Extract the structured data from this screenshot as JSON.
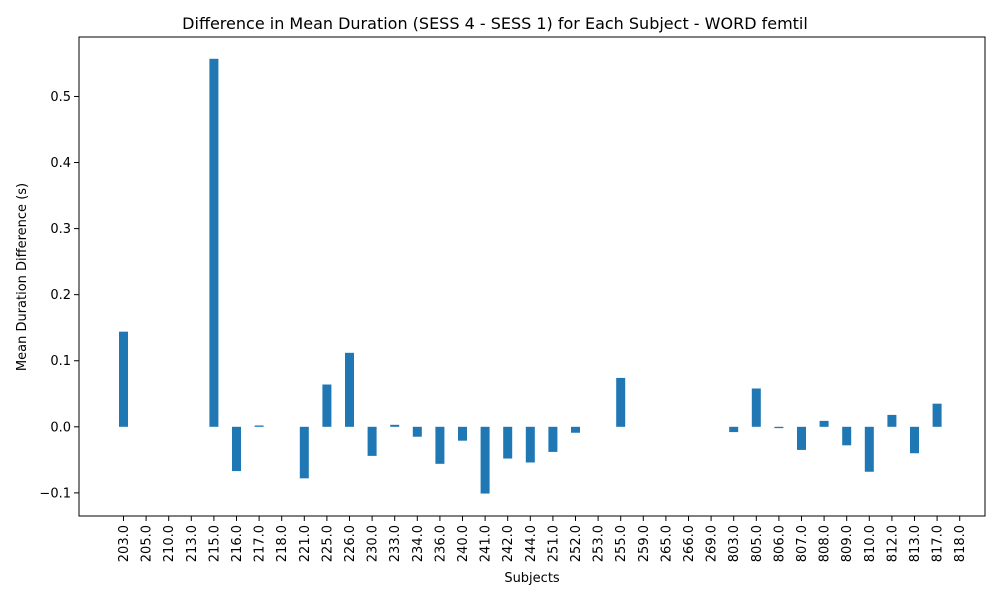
{
  "chart_data": {
    "type": "bar",
    "title": "Difference in Mean Duration (SESS 4 - SESS 1) for Each Subject - WORD femtil",
    "xlabel": "Subjects",
    "ylabel": "Mean Duration Difference (s)",
    "ylim": [
      -0.135,
      0.59
    ],
    "yticks": [
      -0.1,
      0.0,
      0.1,
      0.2,
      0.3,
      0.4,
      0.5
    ],
    "ytick_labels": [
      "−0.1",
      "0.0",
      "0.1",
      "0.2",
      "0.3",
      "0.4",
      "0.5"
    ],
    "grid": false,
    "bar_color": "#1f77b4",
    "categories": [
      "203.0",
      "205.0",
      "210.0",
      "213.0",
      "215.0",
      "216.0",
      "217.0",
      "218.0",
      "221.0",
      "225.0",
      "226.0",
      "230.0",
      "233.0",
      "234.0",
      "236.0",
      "240.0",
      "241.0",
      "242.0",
      "244.0",
      "251.0",
      "252.0",
      "253.0",
      "255.0",
      "259.0",
      "265.0",
      "266.0",
      "269.0",
      "803.0",
      "805.0",
      "806.0",
      "807.0",
      "808.0",
      "809.0",
      "810.0",
      "812.0",
      "813.0",
      "817.0",
      "818.0"
    ],
    "values": [
      0.144,
      0.0,
      0.0,
      0.0,
      0.557,
      -0.067,
      0.002,
      0.0,
      -0.078,
      0.064,
      0.112,
      -0.044,
      0.003,
      -0.015,
      -0.056,
      -0.021,
      -0.101,
      -0.048,
      -0.054,
      -0.038,
      -0.009,
      0.0,
      0.074,
      0.0,
      0.0,
      0.0,
      0.0,
      -0.008,
      0.058,
      -0.002,
      -0.035,
      0.009,
      -0.028,
      -0.068,
      0.018,
      -0.04,
      0.035,
      0.0
    ]
  }
}
